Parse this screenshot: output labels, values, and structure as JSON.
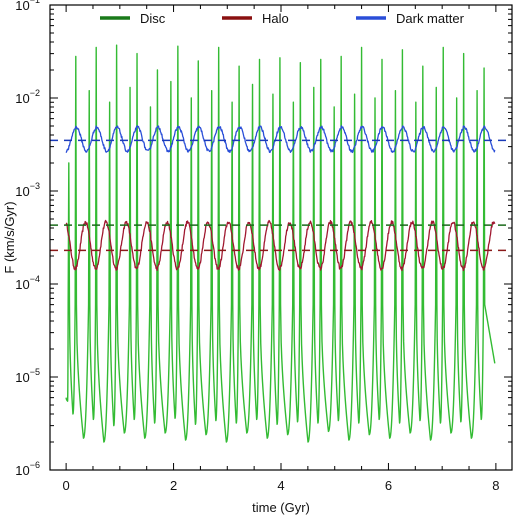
{
  "chart_data": {
    "type": "line",
    "xlabel": "time (Gyr)",
    "ylabel": "F (km/s/Gyr)",
    "xlim": [
      -0.3,
      8.3
    ],
    "ylim": [
      1e-06,
      0.1
    ],
    "yscale": "log",
    "grid": false,
    "legend_position": "top",
    "x_ticks": [
      0,
      2,
      4,
      6,
      8
    ],
    "x_tick_labels": [
      "0",
      "2",
      "4",
      "6",
      "8"
    ],
    "y_ticks": [
      1e-06,
      1e-05,
      0.0001,
      0.001,
      0.01,
      0.1
    ],
    "y_tick_labels": [
      {
        "base": "10",
        "exp": "−6"
      },
      {
        "base": "10",
        "exp": "−5"
      },
      {
        "base": "10",
        "exp": "−4"
      },
      {
        "base": "10",
        "exp": "−3"
      },
      {
        "base": "10",
        "exp": "−2"
      },
      {
        "base": "10",
        "exp": "−1"
      }
    ],
    "series": [
      {
        "name": "Disc",
        "color": "#33bb33",
        "legend_color": "#1a7a1a",
        "mean_level": 0.00043,
        "mean_color": "#1a6a1a",
        "peak_times": [
          0.05,
          0.18,
          0.43,
          0.56,
          0.81,
          0.94,
          1.19,
          1.32,
          1.57,
          1.7,
          1.95,
          2.08,
          2.33,
          2.46,
          2.71,
          2.84,
          3.09,
          3.22,
          3.47,
          3.6,
          3.85,
          3.98,
          4.23,
          4.36,
          4.61,
          4.74,
          4.99,
          5.12,
          5.37,
          5.5,
          5.75,
          5.88,
          6.13,
          6.26,
          6.51,
          6.64,
          6.89,
          7.02,
          7.27,
          7.4,
          7.65,
          7.78
        ],
        "peak_values": [
          0.002,
          0.028,
          0.012,
          0.035,
          0.009,
          0.037,
          0.013,
          0.03,
          0.008,
          0.02,
          0.015,
          0.036,
          0.01,
          0.025,
          0.012,
          0.035,
          0.009,
          0.022,
          0.014,
          0.026,
          0.011,
          0.027,
          0.009,
          0.024,
          0.013,
          0.026,
          0.008,
          0.028,
          0.011,
          0.035,
          0.01,
          0.026,
          0.012,
          0.033,
          0.009,
          0.022,
          0.013,
          0.035,
          0.01,
          0.03,
          0.012,
          0.021
        ],
        "trough_values": [
          5.5e-06,
          4e-06,
          2.2e-06,
          3.5e-06,
          2e-06,
          3e-06,
          2.5e-06,
          3.5e-06,
          2.2e-06,
          3.2e-06,
          2.5e-06,
          3.6e-06,
          2.1e-06,
          3.1e-06,
          2.4e-06,
          3.4e-06,
          2e-06,
          3.2e-06,
          2.5e-06,
          3.5e-06,
          2.2e-06,
          3.1e-06,
          2.4e-06,
          3.3e-06,
          2e-06,
          3.2e-06,
          2.6e-06,
          3.4e-06,
          2.1e-06,
          3.2e-06,
          2.4e-06,
          3.5e-06,
          2.2e-06,
          3.2e-06,
          2.5e-06,
          3.4e-06,
          2.1e-06,
          3.2e-06,
          2.5e-06,
          3.3e-06,
          2.2e-06,
          3.5e-06
        ],
        "end_value": 1.4e-05
      },
      {
        "name": "Halo",
        "color": "#a01830",
        "legend_color": "#8a1010",
        "mean_level": 0.00023,
        "mean_color": "#8a1a1a",
        "oscillation": {
          "center": 0.00026,
          "log_amplitude": 0.25,
          "period": 0.38,
          "phase": 0.3,
          "noise": 0.04
        },
        "x_range": [
          0.0,
          7.98
        ]
      },
      {
        "name": "Dark matter",
        "color": "#2a4ed8",
        "legend_color": "#2a4ed8",
        "mean_level": 0.0035,
        "mean_color": "#1a3ab8",
        "oscillation": {
          "center": 0.0036,
          "log_amplitude": 0.13,
          "period": 0.38,
          "phase": 0.75,
          "noise": 0.03
        },
        "x_range": [
          0.0,
          7.98
        ]
      }
    ]
  }
}
